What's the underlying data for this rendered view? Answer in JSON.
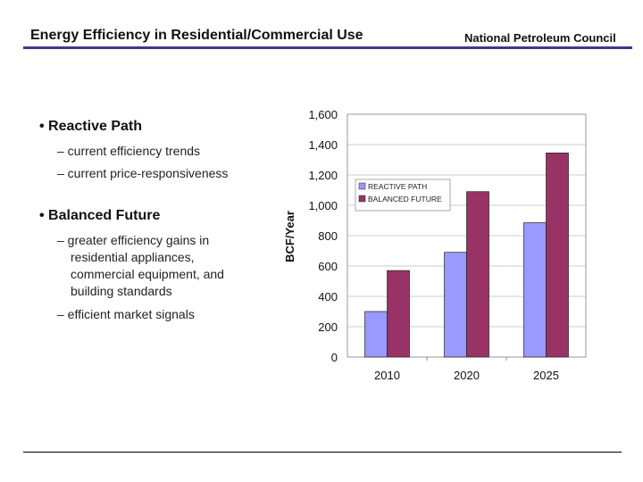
{
  "header": {
    "title": "Energy Efficiency in Residential/Commercial Use",
    "org": "National Petroleum Council"
  },
  "bullets": [
    {
      "label": "• Reactive Path",
      "subs": [
        "– current efficiency trends",
        "– current price-responsiveness"
      ]
    },
    {
      "label": "• Balanced Future",
      "subs": [
        "– greater efficiency gains in residential appliances, commercial equipment, and building standards",
        "– efficient market signals"
      ]
    }
  ],
  "chart_data": {
    "type": "bar",
    "categories": [
      "2010",
      "2020",
      "2025"
    ],
    "series": [
      {
        "name": "REACTIVE PATH",
        "values": [
          300,
          690,
          885
        ],
        "color": "#9999ff"
      },
      {
        "name": "BALANCED FUTURE",
        "values": [
          570,
          1090,
          1345
        ],
        "color": "#993366"
      }
    ],
    "ylabel": "BCF/Year",
    "ylim": [
      0,
      1600
    ],
    "yticks": [
      "0",
      "200",
      "400",
      "600",
      "800",
      "1,000",
      "1,200",
      "1,400",
      "1,600"
    ],
    "grid": true,
    "legend": "top-left"
  }
}
